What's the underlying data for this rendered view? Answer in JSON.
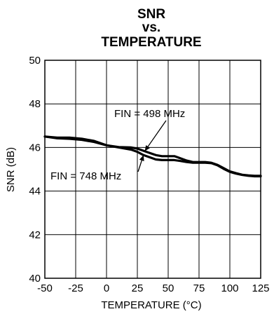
{
  "chart_data": {
    "type": "line",
    "title_lines": [
      "SNR",
      "vs.",
      "TEMPERATURE"
    ],
    "xlabel": "TEMPERATURE (°C)",
    "ylabel": "SNR (dB)",
    "xlim": [
      -50,
      125
    ],
    "ylim": [
      40,
      50
    ],
    "xticks": [
      -50,
      -25,
      0,
      25,
      50,
      75,
      100,
      125
    ],
    "yticks": [
      40,
      42,
      44,
      46,
      48,
      50
    ],
    "grid": true,
    "series": [
      {
        "name": "FIN = 498 MHz",
        "x": [
          -50,
          -40,
          -30,
          -20,
          -10,
          0,
          10,
          20,
          25,
          30,
          35,
          40,
          45,
          50,
          55,
          60,
          65,
          70,
          75,
          80,
          85,
          90,
          95,
          100,
          105,
          110,
          115,
          120,
          125
        ],
        "y": [
          46.5,
          46.45,
          46.45,
          46.4,
          46.3,
          46.1,
          46.02,
          46.0,
          45.95,
          45.85,
          45.75,
          45.65,
          45.6,
          45.6,
          45.6,
          45.5,
          45.4,
          45.33,
          45.33,
          45.33,
          45.3,
          45.2,
          45.05,
          44.9,
          44.82,
          44.75,
          44.72,
          44.7,
          44.7
        ]
      },
      {
        "name": "FIN = 748 MHz",
        "x": [
          -50,
          -40,
          -30,
          -20,
          -10,
          0,
          10,
          20,
          25,
          30,
          35,
          40,
          45,
          50,
          55,
          60,
          65,
          70,
          75,
          80,
          85,
          90,
          95,
          100,
          105,
          110,
          115,
          120,
          125
        ],
        "y": [
          46.5,
          46.42,
          46.4,
          46.35,
          46.25,
          46.1,
          46.0,
          45.9,
          45.8,
          45.65,
          45.55,
          45.45,
          45.42,
          45.42,
          45.42,
          45.38,
          45.33,
          45.3,
          45.3,
          45.3,
          45.28,
          45.18,
          45.02,
          44.88,
          44.8,
          44.74,
          44.7,
          44.68,
          44.68
        ]
      }
    ],
    "annotations": [
      {
        "text": "FIN = 498 MHz",
        "series": 0
      },
      {
        "text": "FIN = 748 MHz",
        "series": 1
      }
    ]
  }
}
